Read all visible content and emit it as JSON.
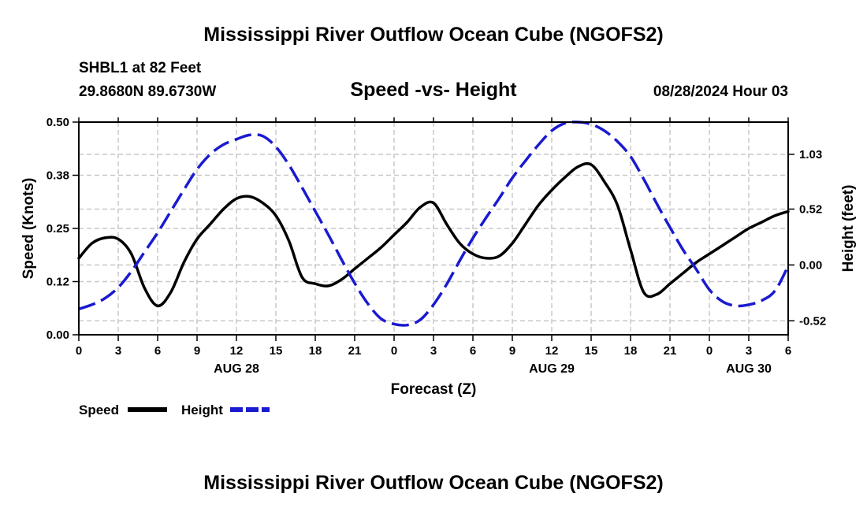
{
  "header": {
    "title": "Mississippi River Outflow Ocean Cube (NGOFS2)",
    "station": "SHBL1 at 82 Feet",
    "coords": "29.8680N  89.6730W",
    "subtitle": "Speed -vs- Height",
    "datetime": "08/28/2024 Hour 03"
  },
  "footer": {
    "title": "Mississippi River Outflow Ocean Cube (NGOFS2)"
  },
  "colors": {
    "speed": "#000000",
    "height": "#1a1ad0",
    "grid": "#c8c8c8"
  },
  "chart_data": {
    "type": "line",
    "xlabel": "Forecast (Z)",
    "ylabel": "Speed (Knots)",
    "y2label": "Height (feet)",
    "x_hours_range": [
      0,
      54
    ],
    "ylim": [
      0,
      0.5
    ],
    "y_ticks": [
      "0.00",
      "0.12",
      "0.25",
      "0.38",
      "0.50"
    ],
    "y2lim": [
      -0.65,
      1.33
    ],
    "y2_ticks": [
      "-0.52",
      "0.00",
      "0.52",
      "1.03"
    ],
    "x_tick_labels": [
      "0",
      "3",
      "6",
      "9",
      "12",
      "15",
      "18",
      "21",
      "0",
      "3",
      "6",
      "9",
      "12",
      "15",
      "18",
      "21",
      "0",
      "3",
      "6"
    ],
    "date_labels": [
      {
        "label": "AUG 28",
        "hour": 12
      },
      {
        "label": "AUG 29",
        "hour": 36
      },
      {
        "label": "AUG 30",
        "hour": 51
      }
    ],
    "series": [
      {
        "name": "Speed",
        "axis": "left",
        "style": "solid",
        "x": [
          0,
          1,
          2,
          3,
          4,
          5,
          6,
          7,
          8,
          9,
          10,
          11,
          12,
          13,
          14,
          15,
          16,
          17,
          18,
          19,
          20,
          21,
          22,
          23,
          24,
          25,
          26,
          27,
          28,
          29,
          30,
          31,
          32,
          33,
          34,
          35,
          36,
          37,
          38,
          39,
          40,
          41,
          42,
          43,
          44,
          45,
          46,
          47,
          48,
          49,
          50,
          51,
          52,
          53,
          54
        ],
        "values": [
          0.18,
          0.215,
          0.228,
          0.225,
          0.19,
          0.11,
          0.068,
          0.1,
          0.17,
          0.225,
          0.26,
          0.295,
          0.32,
          0.325,
          0.31,
          0.28,
          0.22,
          0.135,
          0.12,
          0.115,
          0.13,
          0.155,
          0.18,
          0.205,
          0.235,
          0.265,
          0.3,
          0.31,
          0.26,
          0.215,
          0.19,
          0.18,
          0.185,
          0.215,
          0.26,
          0.305,
          0.34,
          0.37,
          0.395,
          0.4,
          0.36,
          0.305,
          0.2,
          0.1,
          0.095,
          0.12,
          0.145,
          0.17,
          0.19,
          0.21,
          0.23,
          0.25,
          0.265,
          0.28,
          0.29
        ]
      },
      {
        "name": "Height",
        "axis": "right",
        "style": "dashed",
        "x": [
          0,
          1,
          2,
          3,
          4,
          5,
          6,
          7,
          8,
          9,
          10,
          11,
          12,
          13,
          14,
          15,
          16,
          17,
          18,
          19,
          20,
          21,
          22,
          23,
          24,
          25,
          26,
          27,
          28,
          29,
          30,
          31,
          32,
          33,
          34,
          35,
          36,
          37,
          38,
          39,
          40,
          41,
          42,
          43,
          44,
          45,
          46,
          47,
          48,
          49,
          50,
          51,
          52,
          53,
          54
        ],
        "values": [
          -0.41,
          -0.37,
          -0.31,
          -0.21,
          -0.06,
          0.12,
          0.3,
          0.5,
          0.7,
          0.89,
          1.03,
          1.12,
          1.17,
          1.21,
          1.2,
          1.1,
          0.93,
          0.72,
          0.5,
          0.28,
          0.05,
          -0.17,
          -0.36,
          -0.5,
          -0.55,
          -0.56,
          -0.51,
          -0.37,
          -0.18,
          0.04,
          0.25,
          0.44,
          0.62,
          0.81,
          0.97,
          1.12,
          1.25,
          1.32,
          1.33,
          1.31,
          1.25,
          1.15,
          1.01,
          0.8,
          0.57,
          0.35,
          0.14,
          -0.04,
          -0.23,
          -0.34,
          -0.38,
          -0.37,
          -0.33,
          -0.24,
          -0.01
        ]
      }
    ]
  },
  "legend": {
    "speed_label": "Speed",
    "height_label": "Height"
  }
}
